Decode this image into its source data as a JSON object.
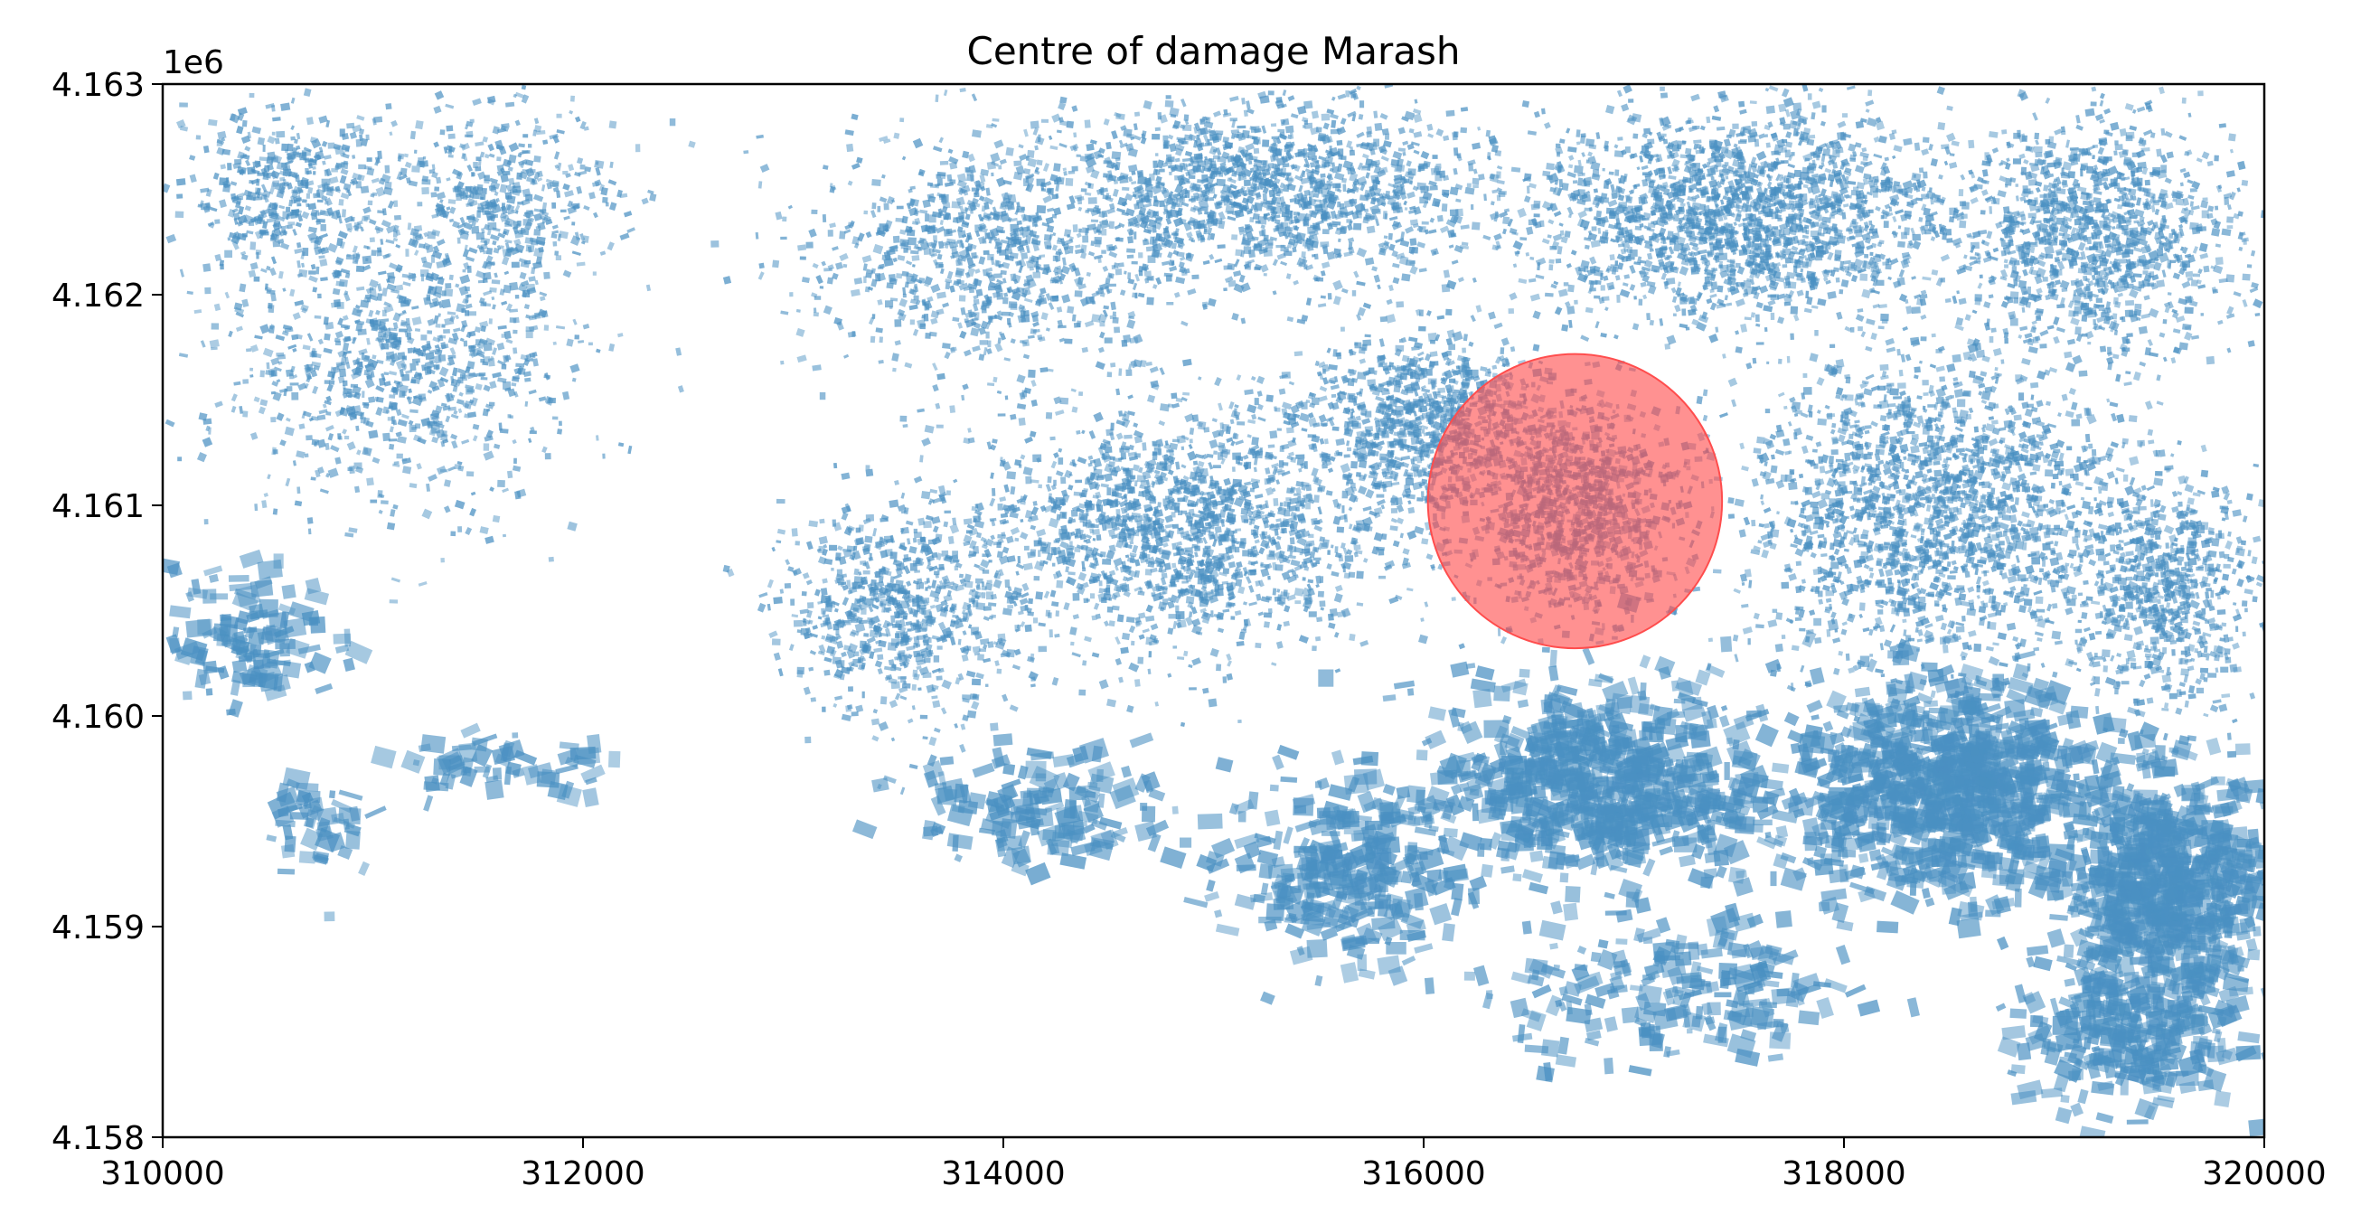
{
  "chart_data": {
    "type": "scatter",
    "title": "Centre of damage Marash",
    "xlabel": "",
    "ylabel": "",
    "xlim": [
      310000,
      320000
    ],
    "ylim": [
      4158000,
      4163000
    ],
    "x_ticks": [
      "310000",
      "312000",
      "314000",
      "316000",
      "318000",
      "320000"
    ],
    "x_tick_values": [
      310000,
      312000,
      314000,
      316000,
      318000,
      320000
    ],
    "y_ticks": [
      "4.158",
      "4.159",
      "4.160",
      "4.161",
      "4.162",
      "4.163"
    ],
    "y_tick_values": [
      4158000,
      4159000,
      4160000,
      4161000,
      4162000,
      4163000
    ],
    "y_offset_label": "1e6",
    "grid": false,
    "damage_centre": {
      "x": 316720,
      "y": 4161020,
      "radius": 700,
      "color": "#ff4d4d",
      "opacity": 0.62
    },
    "building_color": "#4a90c2",
    "building_clusters": [
      {
        "x": 311100,
        "y": 4161700,
        "sx": 750,
        "sy": 650,
        "n": 900,
        "small": true
      },
      {
        "x": 310600,
        "y": 4162500,
        "sx": 450,
        "sy": 350,
        "n": 400,
        "small": true
      },
      {
        "x": 311600,
        "y": 4162500,
        "sx": 500,
        "sy": 350,
        "n": 400,
        "small": true
      },
      {
        "x": 313900,
        "y": 4162200,
        "sx": 800,
        "sy": 550,
        "n": 900,
        "small": true
      },
      {
        "x": 315300,
        "y": 4162500,
        "sx": 900,
        "sy": 380,
        "n": 1300,
        "small": true
      },
      {
        "x": 317500,
        "y": 4162400,
        "sx": 900,
        "sy": 450,
        "n": 1800,
        "small": true
      },
      {
        "x": 319200,
        "y": 4162300,
        "sx": 600,
        "sy": 500,
        "n": 1100,
        "small": true
      },
      {
        "x": 314800,
        "y": 4160900,
        "sx": 900,
        "sy": 550,
        "n": 1600,
        "small": true
      },
      {
        "x": 313500,
        "y": 4160500,
        "sx": 500,
        "sy": 450,
        "n": 700,
        "small": true
      },
      {
        "x": 316000,
        "y": 4161400,
        "sx": 500,
        "sy": 400,
        "n": 900,
        "small": true
      },
      {
        "x": 318400,
        "y": 4161000,
        "sx": 800,
        "sy": 650,
        "n": 1800,
        "small": true
      },
      {
        "x": 319500,
        "y": 4160600,
        "sx": 400,
        "sy": 500,
        "n": 700,
        "small": true
      },
      {
        "x": 316800,
        "y": 4159700,
        "sx": 700,
        "sy": 450,
        "n": 700,
        "small": false
      },
      {
        "x": 318400,
        "y": 4159700,
        "sx": 700,
        "sy": 450,
        "n": 900,
        "small": false
      },
      {
        "x": 319500,
        "y": 4159200,
        "sx": 450,
        "sy": 500,
        "n": 700,
        "small": false
      },
      {
        "x": 315600,
        "y": 4159300,
        "sx": 500,
        "sy": 400,
        "n": 300,
        "small": false
      },
      {
        "x": 314200,
        "y": 4159600,
        "sx": 600,
        "sy": 250,
        "n": 150,
        "small": false
      },
      {
        "x": 317200,
        "y": 4158700,
        "sx": 700,
        "sy": 300,
        "n": 200,
        "small": false
      },
      {
        "x": 319300,
        "y": 4158500,
        "sx": 500,
        "sy": 300,
        "n": 250,
        "small": false
      },
      {
        "x": 310400,
        "y": 4160400,
        "sx": 350,
        "sy": 300,
        "n": 120,
        "small": false
      },
      {
        "x": 311600,
        "y": 4159800,
        "sx": 450,
        "sy": 150,
        "n": 60,
        "small": false
      },
      {
        "x": 310700,
        "y": 4159500,
        "sx": 200,
        "sy": 250,
        "n": 50,
        "small": false
      },
      {
        "x": 316720,
        "y": 4161000,
        "sx": 450,
        "sy": 450,
        "n": 900,
        "small": true
      }
    ]
  }
}
